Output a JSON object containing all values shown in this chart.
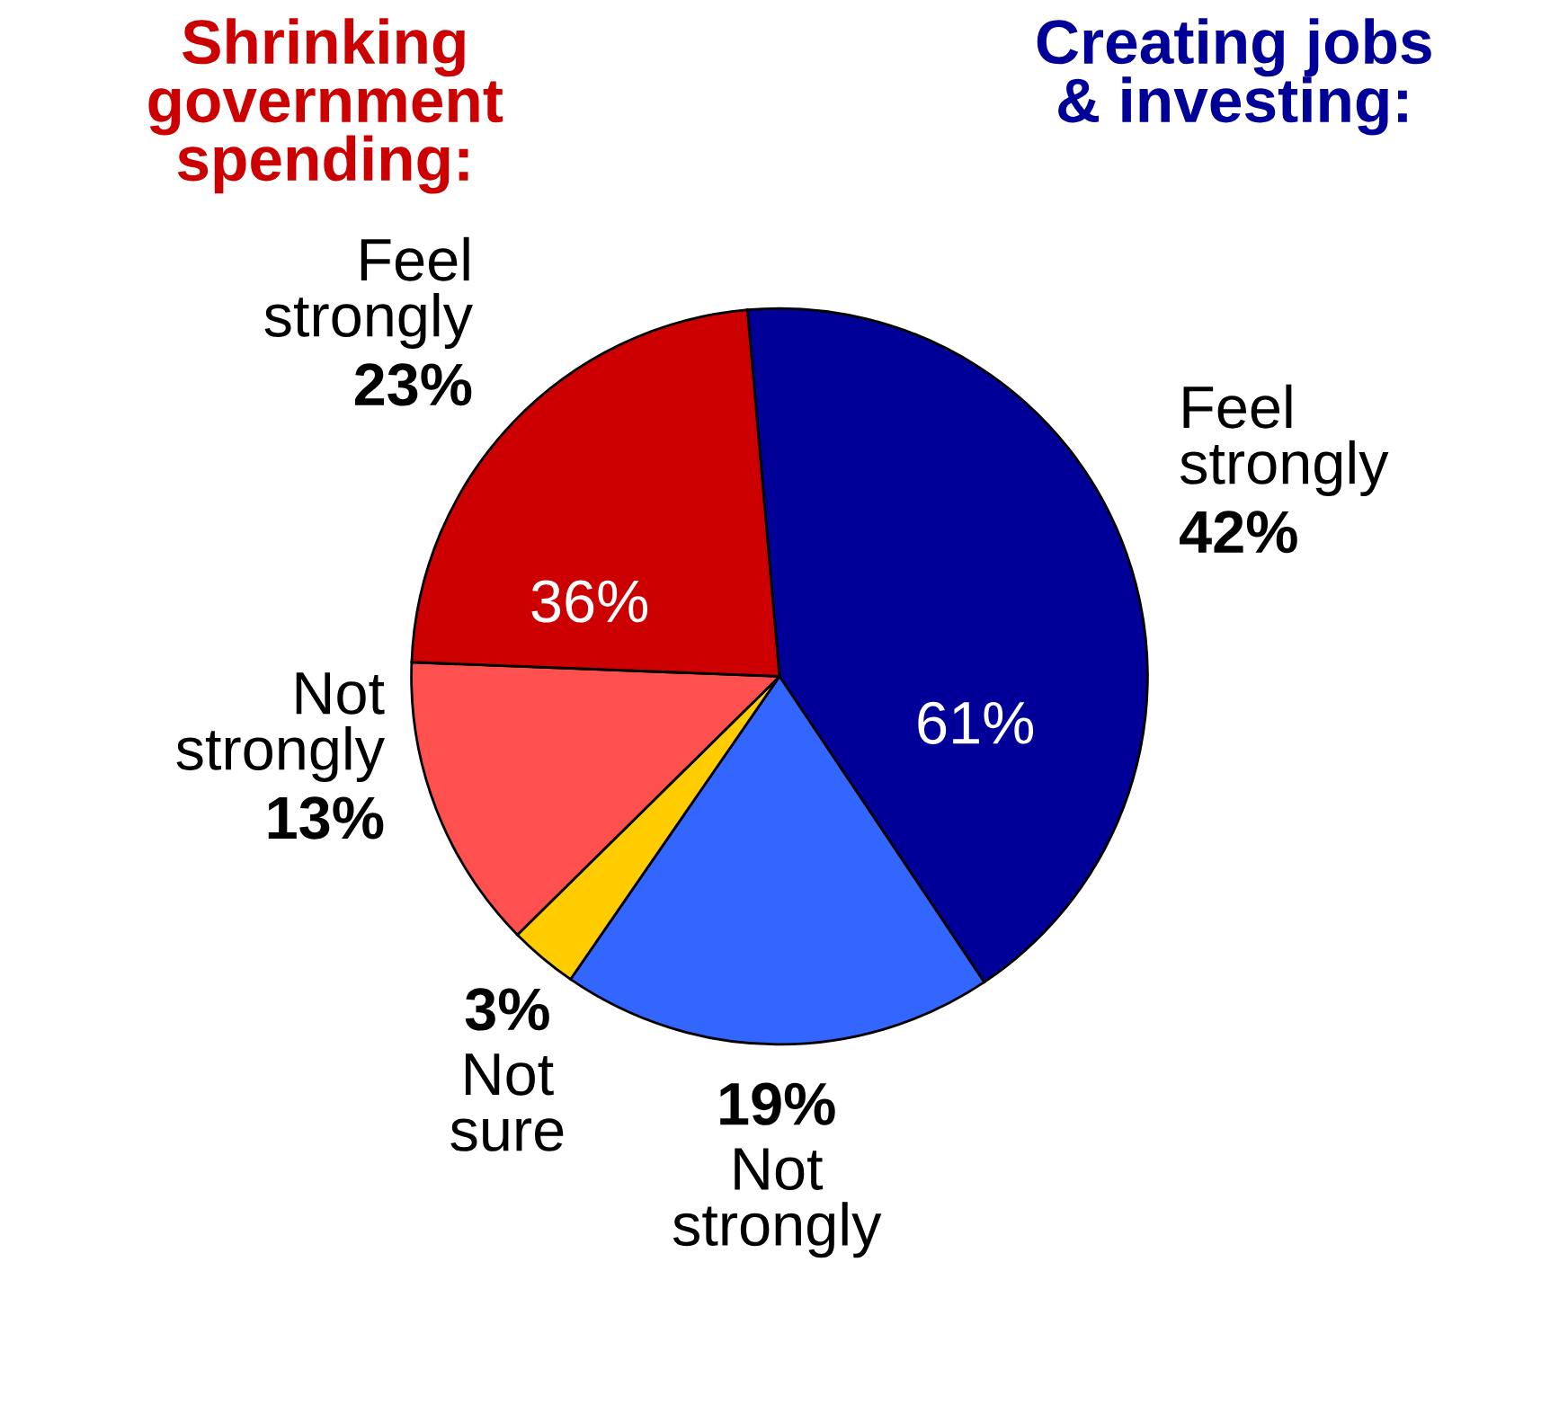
{
  "chart_data": {
    "type": "pie",
    "categories": [
      "Feel strongly",
      "Not strongly",
      "Not sure",
      "Not strongly",
      "Feel strongly"
    ],
    "values": [
      42,
      19,
      3,
      13,
      23
    ],
    "colors": [
      "#000099",
      "#3366ff",
      "#ffcc00",
      "#ff5050",
      "#cc0000"
    ],
    "value_labels": [
      "42%",
      "19%",
      "3%",
      "13%",
      "23%"
    ],
    "annotations": [
      "Shrinking government spending:",
      "Creating jobs & investing:",
      "61%",
      "36%"
    ]
  }
}
